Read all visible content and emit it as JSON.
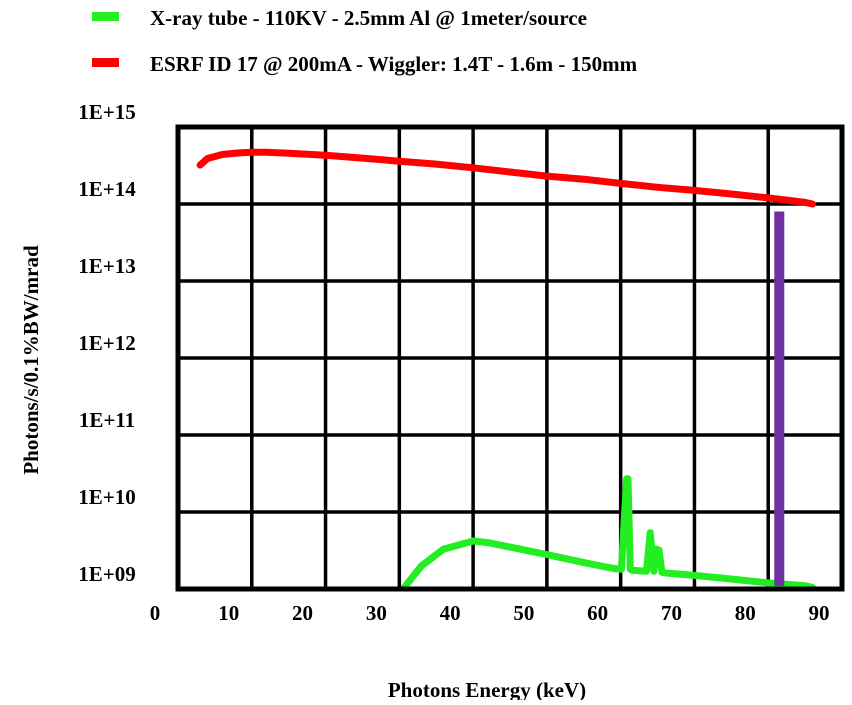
{
  "chart_data": {
    "type": "line",
    "title": "",
    "xlabel": "Photons Energy (keV)",
    "ylabel": "Photons/s/0.1%BW/mrad",
    "xlim": [
      0,
      90
    ],
    "ylim": [
      1000000000.0,
      1000000000000000.0
    ],
    "yscale": "log",
    "grid": true,
    "legend_position": "top-left",
    "x_ticks": [
      0,
      10,
      20,
      30,
      40,
      50,
      60,
      70,
      80,
      90
    ],
    "x_tick_labels": [
      "0",
      "10",
      "20",
      "30",
      "40",
      "50",
      "60",
      "70",
      "80",
      "90"
    ],
    "y_ticks": [
      1000000000.0,
      10000000000.0,
      100000000000.0,
      1000000000000.0,
      10000000000000.0,
      100000000000000.0,
      1000000000000000.0
    ],
    "y_tick_labels": [
      "1E+09",
      "1E+10",
      "1E+11",
      "1E+12",
      "1E+13",
      "1E+14",
      "1E+15"
    ],
    "series": [
      {
        "name": "X-ray tube - 110KV - 2.5mm Al @ 1meter/source",
        "color": "#22ee22",
        "x": [
          30,
          31,
          33,
          36,
          40,
          42,
          45,
          50,
          55,
          59,
          60.1,
          60.8,
          61.0,
          61.3,
          61.5,
          63.5,
          64.0,
          64.5,
          64.8,
          65.2,
          65.6,
          66.5,
          70,
          75,
          80,
          85,
          86
        ],
        "y": [
          850000000.0,
          1150000000.0,
          2000000000.0,
          3300000000.0,
          4200000000.0,
          4000000000.0,
          3500000000.0,
          2800000000.0,
          2200000000.0,
          1850000000.0,
          1800000000.0,
          27000000000.0,
          27000000000.0,
          1800000000.0,
          1750000000.0,
          1700000000.0,
          5400000000.0,
          1700000000.0,
          3300000000.0,
          3200000000.0,
          1650000000.0,
          1600000000.0,
          1500000000.0,
          1350000000.0,
          1200000000.0,
          1100000000.0,
          1050000000.0
        ]
      },
      {
        "name": "ESRF ID 17 @ 200mA - Wiggler: 1.4T - 1.6m - 150mm",
        "color": "#ff0000",
        "x": [
          3,
          4,
          6,
          8,
          10,
          12,
          15,
          20,
          25,
          30,
          35,
          40,
          45,
          50,
          55,
          60,
          65,
          70,
          75,
          80,
          85,
          86
        ],
        "y": [
          320000000000000.0,
          390000000000000.0,
          440000000000000.0,
          460000000000000.0,
          470000000000000.0,
          470000000000000.0,
          455000000000000.0,
          430000000000000.0,
          395000000000000.0,
          360000000000000.0,
          330000000000000.0,
          295000000000000.0,
          260000000000000.0,
          230000000000000.0,
          210000000000000.0,
          185000000000000.0,
          165000000000000.0,
          150000000000000.0,
          135000000000000.0,
          120000000000000.0,
          105000000000000.0,
          100000000000000.0
        ]
      }
    ],
    "annotations": [
      {
        "type": "vertical-bar",
        "color": "#7030a0",
        "x": 81.5,
        "y": [
          1100000000.0,
          80000000000000.0
        ]
      }
    ]
  }
}
